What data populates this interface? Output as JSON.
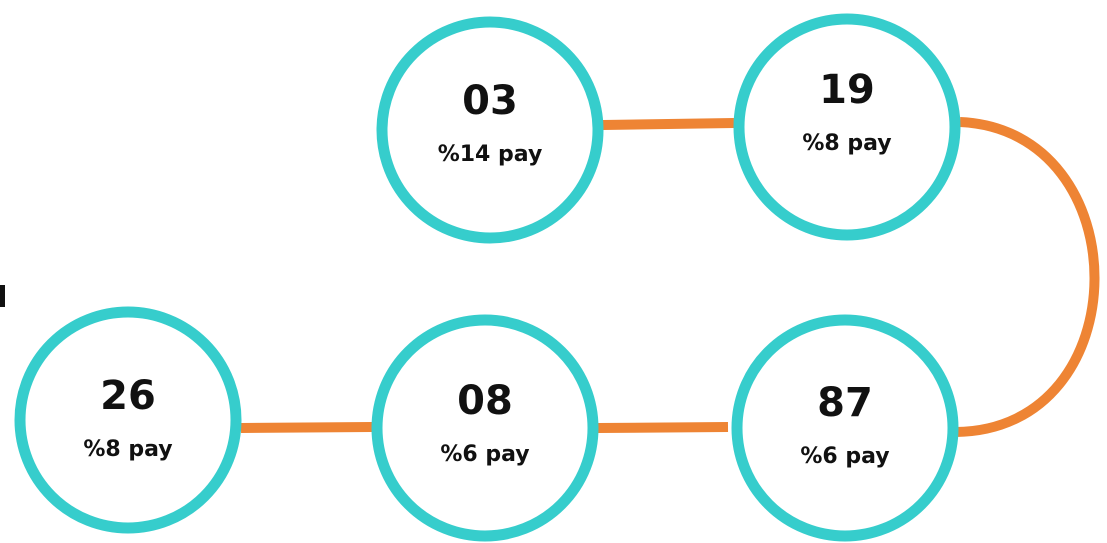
{
  "nodes": [
    {
      "number": "03",
      "label": "%14 pay"
    },
    {
      "number": "19",
      "label": "%8 pay"
    },
    {
      "number": "87",
      "label": "%6 pay"
    },
    {
      "number": "08",
      "label": "%6 pay"
    },
    {
      "number": "26",
      "label": "%8 pay"
    }
  ]
}
